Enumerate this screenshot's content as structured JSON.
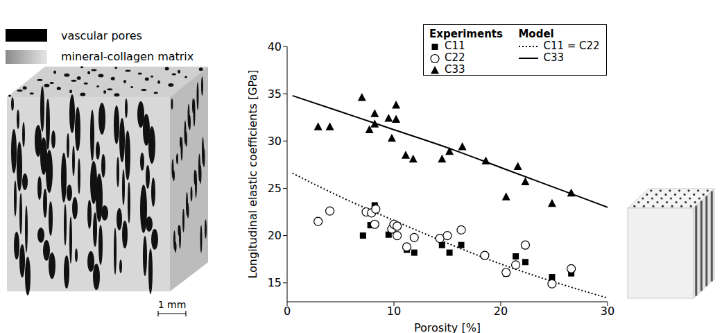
{
  "chart_data": {
    "type": "scatter",
    "x_label": "Porosity [%]",
    "y_label": "Longitudinal elastic coefficients [GPa]",
    "xlim": [
      0,
      30
    ],
    "xticks": [
      0,
      10,
      20,
      30
    ],
    "ylim": [
      13,
      40
    ],
    "yticks": [
      15,
      20,
      25,
      30,
      35,
      40
    ],
    "legend": "top right",
    "legend_titles": [
      "Experiments",
      "Model"
    ],
    "series": [
      {
        "name": "C11",
        "type": "scatter",
        "marker": "square",
        "color": "#000000",
        "x": [
          7.1,
          7.8,
          8.2,
          9.5,
          11.2,
          11.9,
          14.5,
          15.2,
          16.3,
          20.5,
          21.4,
          22.3,
          24.8,
          26.6
        ],
        "values": [
          20.0,
          21.1,
          23.2,
          20.1,
          18.5,
          18.2,
          19.0,
          18.2,
          19.0,
          16.0,
          17.8,
          17.2,
          15.6,
          16.0
        ]
      },
      {
        "name": "C22",
        "type": "scatter",
        "marker": "circle",
        "color": "#000000",
        "x": [
          2.9,
          4.0,
          7.4,
          7.9,
          8.2,
          8.3,
          9.8,
          10.0,
          10.3,
          10.3,
          11.2,
          11.9,
          14.3,
          15.0,
          16.3,
          18.5,
          20.5,
          21.4,
          22.3,
          24.8,
          26.6
        ],
        "values": [
          21.5,
          22.6,
          22.5,
          22.4,
          21.2,
          22.8,
          20.7,
          21.2,
          21.0,
          20.0,
          18.8,
          19.8,
          19.7,
          20.0,
          20.6,
          17.9,
          16.1,
          16.9,
          19.0,
          14.9,
          16.5
        ]
      },
      {
        "name": "C33",
        "type": "scatter",
        "marker": "triangle",
        "color": "#000000",
        "x": [
          2.9,
          4.0,
          7.0,
          7.7,
          8.2,
          8.2,
          9.5,
          9.8,
          10.2,
          10.2,
          11.1,
          11.8,
          14.5,
          15.2,
          16.4,
          18.6,
          20.5,
          21.6,
          22.3,
          24.8,
          26.6
        ],
        "values": [
          31.5,
          31.5,
          34.6,
          31.2,
          31.8,
          32.9,
          32.4,
          30.3,
          32.3,
          33.8,
          28.5,
          28.1,
          28.1,
          28.9,
          29.4,
          27.9,
          24.1,
          27.3,
          25.7,
          23.4,
          24.5
        ]
      },
      {
        "name": "C11 = C22",
        "type": "line",
        "line_style": "dotted",
        "color": "#000000",
        "x": [
          0.5,
          5,
          10,
          15,
          20,
          25,
          30
        ],
        "values": [
          26.6,
          24.1,
          21.6,
          19.2,
          17.0,
          15.1,
          13.4
        ]
      },
      {
        "name": "C33",
        "type": "line",
        "line_style": "solid",
        "color": "#000000",
        "x": [
          0.5,
          5,
          10,
          15,
          20,
          25,
          30
        ],
        "values": [
          34.8,
          33.1,
          31.2,
          29.3,
          27.2,
          25.1,
          23.0
        ]
      }
    ]
  },
  "panels": {
    "left_labels": [
      "vascular pores",
      "mineral-collagen matrix"
    ],
    "scale_bar": "1 mm"
  }
}
